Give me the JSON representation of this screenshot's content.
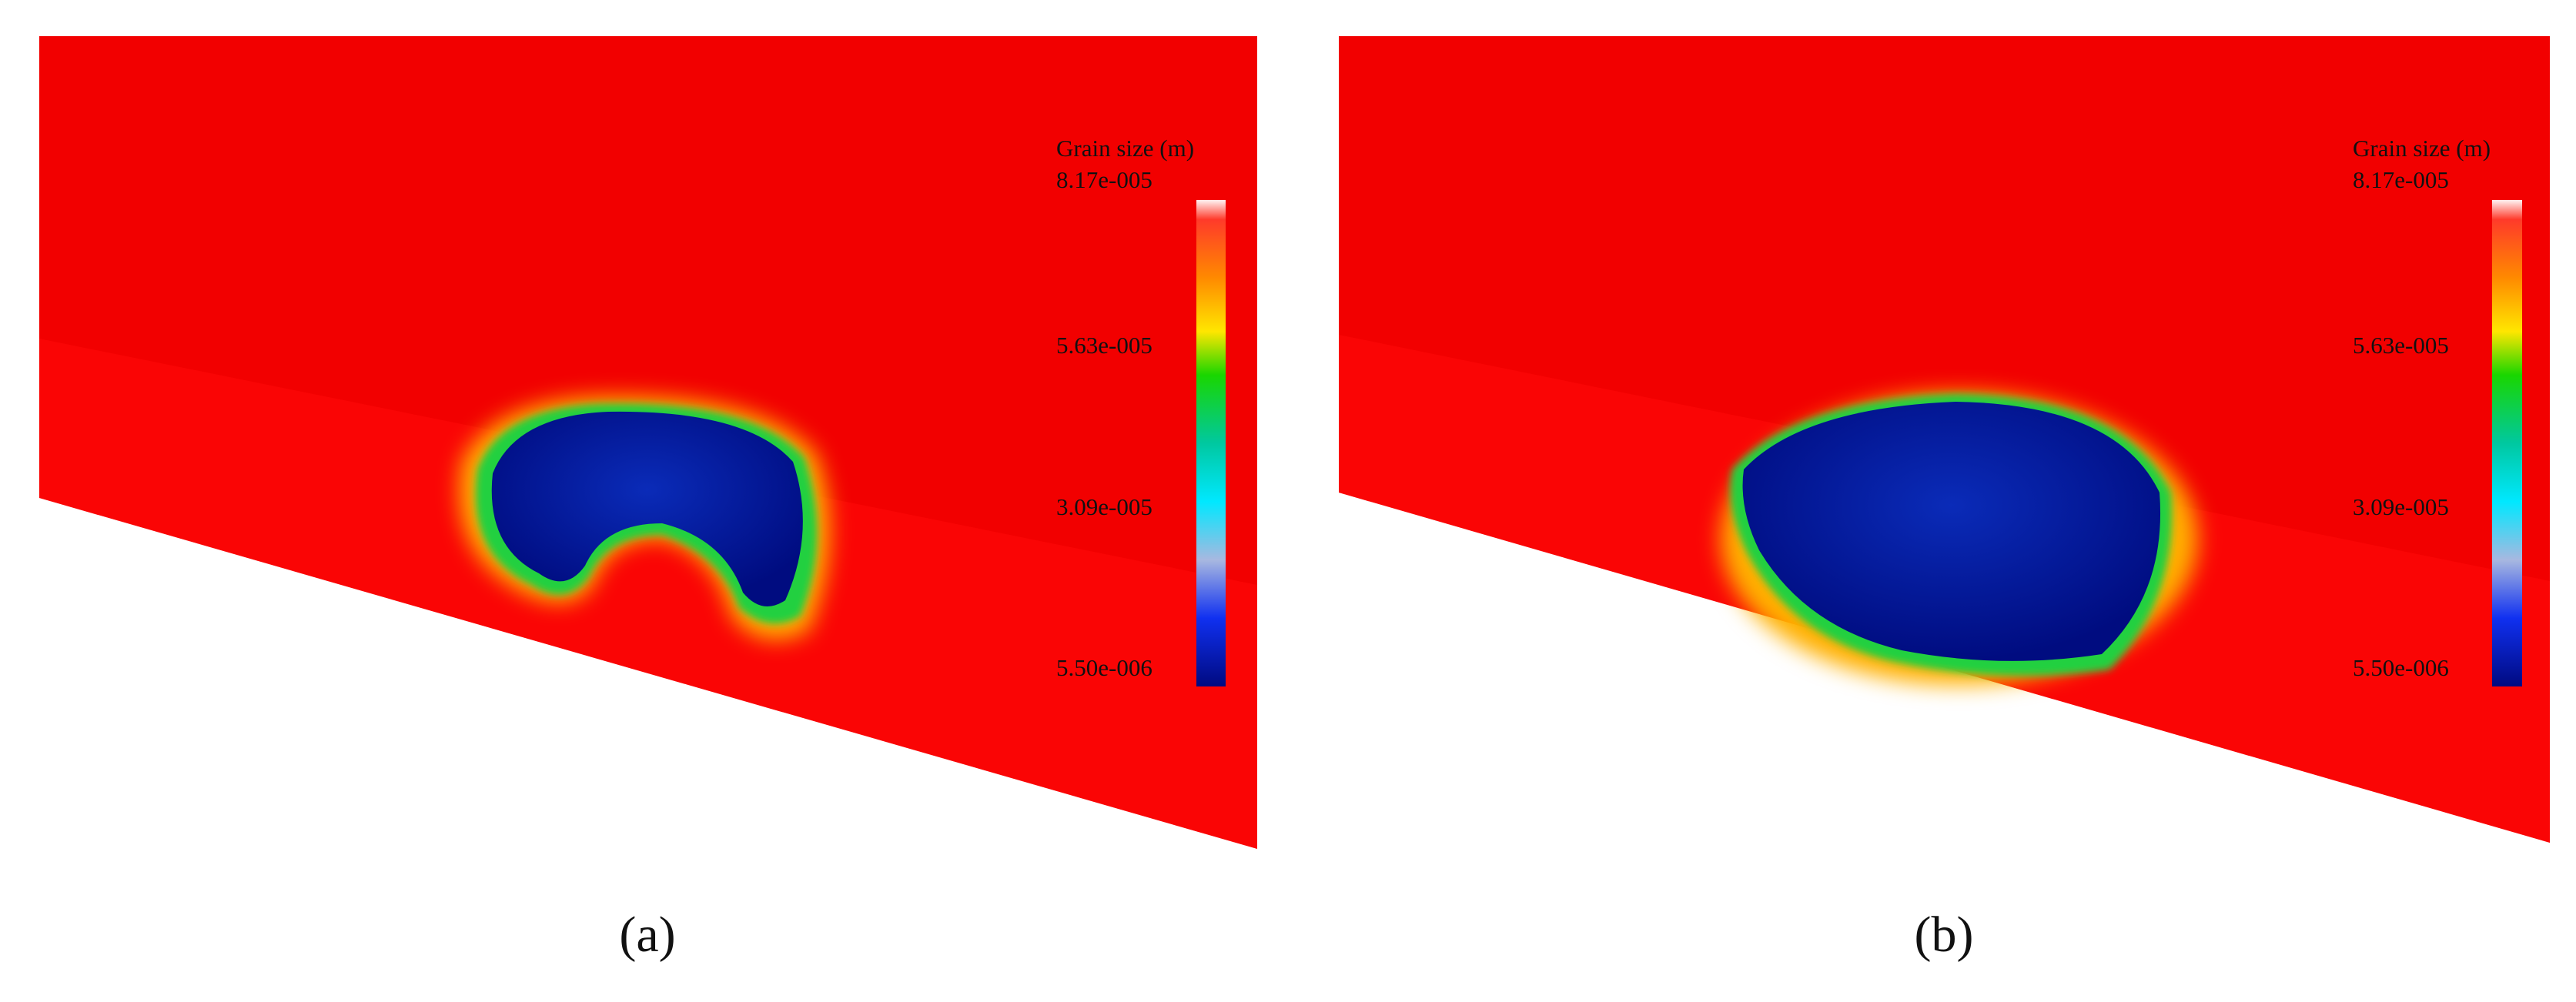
{
  "panels": [
    {
      "label": "(a)",
      "colorbar": {
        "title": "Grain size (m)",
        "ticks": [
          "8.17e-005",
          "5.63e-005",
          "3.09e-005",
          "5.50e-006"
        ]
      }
    },
    {
      "label": "(b)",
      "colorbar": {
        "title": "Grain size (m)",
        "ticks": [
          "8.17e-005",
          "5.63e-005",
          "3.09e-005",
          "5.50e-006"
        ]
      }
    }
  ]
}
